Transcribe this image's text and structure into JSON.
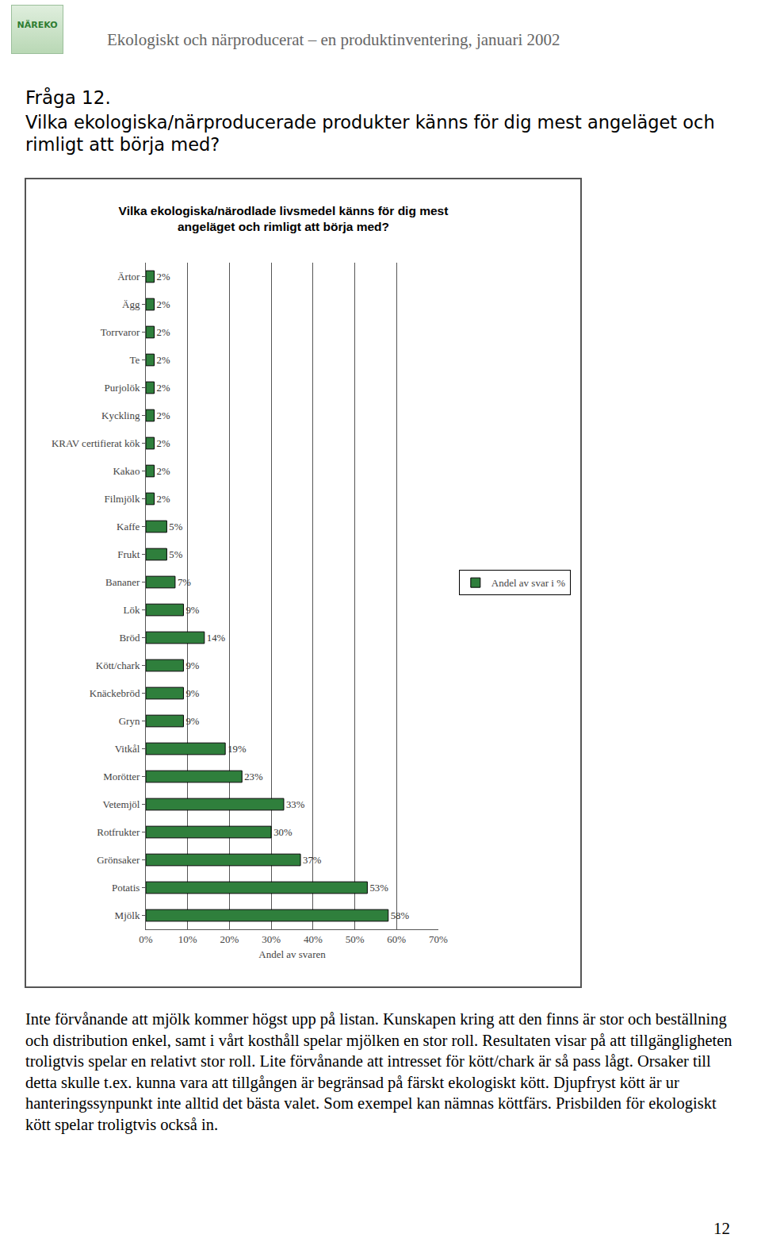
{
  "header": {
    "logo_text": "NÄREKO",
    "title": "Ekologiskt och närproducerat – en produktinventering, januari 2002"
  },
  "question": {
    "number": "Fråga 12.",
    "text": "Vilka ekologiska/närproducerade produkter känns för dig mest angeläget och rimligt att börja med?"
  },
  "chart_data": {
    "type": "bar",
    "orientation": "horizontal",
    "title": "Vilka ekologiska/närodlade livsmedel känns för dig mest angeläget och rimligt att börja med?",
    "x_label": "Andel av svaren",
    "categories": [
      "Ärtor",
      "Ägg",
      "Torrvaror",
      "Te",
      "Purjolök",
      "Kyckling",
      "KRAV certifierat kök",
      "Kakao",
      "Filmjölk",
      "Kaffe",
      "Frukt",
      "Bananer",
      "Lök",
      "Bröd",
      "Kött/chark",
      "Knäckebröd",
      "Gryn",
      "Vitkål",
      "Morötter",
      "Vetemjöl",
      "Rotfrukter",
      "Grönsaker",
      "Potatis",
      "Mjölk"
    ],
    "series": [
      {
        "name": "Andel av svar i %",
        "color": "#2f7f3c",
        "values": [
          2,
          2,
          2,
          2,
          2,
          2,
          2,
          2,
          2,
          5,
          5,
          7,
          9,
          14,
          9,
          9,
          9,
          19,
          23,
          33,
          30,
          37,
          53,
          58
        ],
        "value_labels": [
          "2%",
          "2%",
          "2%",
          "2%",
          "2%",
          "2%",
          "2%",
          "2%",
          "2%",
          "5%",
          "5%",
          "7%",
          "9%",
          "14%",
          "9%",
          "9%",
          "9%",
          "19%",
          "23%",
          "33%",
          "30%",
          "37%",
          "53%",
          "58%"
        ]
      }
    ],
    "xlim": [
      0,
      70
    ],
    "xticks": [
      {
        "value": 0,
        "label": "0%"
      },
      {
        "value": 10,
        "label": "10%"
      },
      {
        "value": 20,
        "label": "20%"
      },
      {
        "value": 30,
        "label": "30%"
      },
      {
        "value": 40,
        "label": "40%"
      },
      {
        "value": 50,
        "label": "50%"
      },
      {
        "value": 60,
        "label": "60%"
      },
      {
        "value": 70,
        "label": "70%"
      }
    ],
    "grid": true,
    "legend": "right",
    "data_labels": true
  },
  "body": "Inte förvånande att mjölk kommer högst upp på listan. Kunskapen kring att den finns är stor och beställning och distribution enkel, samt i vårt kosthåll spelar mjölken en stor roll. Resultaten visar på att tillgängligheten troligtvis spelar en relativt stor roll. Lite förvånande att intresset för kött/chark är så pass lågt. Orsaker till detta skulle t.ex. kunna vara att tillgången är begränsad på färskt ekologiskt kött. Djupfryst kött är ur hanteringssynpunkt inte alltid det bästa valet. Som exempel kan nämnas köttfärs. Prisbilden för ekologiskt kött spelar troligtvis också in.",
  "page_number": "12"
}
